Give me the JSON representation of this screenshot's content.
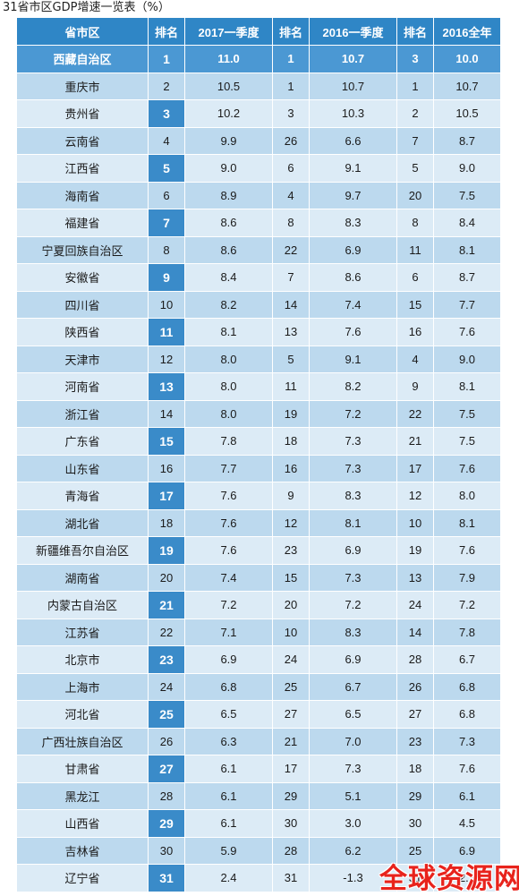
{
  "title": "31省市区GDP增速一览表（%）",
  "headers": [
    "省市区",
    "排名",
    "2017一季度",
    "排名",
    "2016一季度",
    "排名",
    "2016全年"
  ],
  "rows": [
    [
      "西藏自治区",
      "1",
      "11.0",
      "1",
      "10.7",
      "3",
      "10.0"
    ],
    [
      "重庆市",
      "2",
      "10.5",
      "1",
      "10.7",
      "1",
      "10.7"
    ],
    [
      "贵州省",
      "3",
      "10.2",
      "3",
      "10.3",
      "2",
      "10.5"
    ],
    [
      "云南省",
      "4",
      "9.9",
      "26",
      "6.6",
      "7",
      "8.7"
    ],
    [
      "江西省",
      "5",
      "9.0",
      "6",
      "9.1",
      "5",
      "9.0"
    ],
    [
      "海南省",
      "6",
      "8.9",
      "4",
      "9.7",
      "20",
      "7.5"
    ],
    [
      "福建省",
      "7",
      "8.6",
      "8",
      "8.3",
      "8",
      "8.4"
    ],
    [
      "宁夏回族自治区",
      "8",
      "8.6",
      "22",
      "6.9",
      "11",
      "8.1"
    ],
    [
      "安徽省",
      "9",
      "8.4",
      "7",
      "8.6",
      "6",
      "8.7"
    ],
    [
      "四川省",
      "10",
      "8.2",
      "14",
      "7.4",
      "15",
      "7.7"
    ],
    [
      "陕西省",
      "11",
      "8.1",
      "13",
      "7.6",
      "16",
      "7.6"
    ],
    [
      "天津市",
      "12",
      "8.0",
      "5",
      "9.1",
      "4",
      "9.0"
    ],
    [
      "河南省",
      "13",
      "8.0",
      "11",
      "8.2",
      "9",
      "8.1"
    ],
    [
      "浙江省",
      "14",
      "8.0",
      "19",
      "7.2",
      "22",
      "7.5"
    ],
    [
      "广东省",
      "15",
      "7.8",
      "18",
      "7.3",
      "21",
      "7.5"
    ],
    [
      "山东省",
      "16",
      "7.7",
      "16",
      "7.3",
      "17",
      "7.6"
    ],
    [
      "青海省",
      "17",
      "7.6",
      "9",
      "8.3",
      "12",
      "8.0"
    ],
    [
      "湖北省",
      "18",
      "7.6",
      "12",
      "8.1",
      "10",
      "8.1"
    ],
    [
      "新疆维吾尔自治区",
      "19",
      "7.6",
      "23",
      "6.9",
      "19",
      "7.6"
    ],
    [
      "湖南省",
      "20",
      "7.4",
      "15",
      "7.3",
      "13",
      "7.9"
    ],
    [
      "内蒙古自治区",
      "21",
      "7.2",
      "20",
      "7.2",
      "24",
      "7.2"
    ],
    [
      "江苏省",
      "22",
      "7.1",
      "10",
      "8.3",
      "14",
      "7.8"
    ],
    [
      "北京市",
      "23",
      "6.9",
      "24",
      "6.9",
      "28",
      "6.7"
    ],
    [
      "上海市",
      "24",
      "6.8",
      "25",
      "6.7",
      "26",
      "6.8"
    ],
    [
      "河北省",
      "25",
      "6.5",
      "27",
      "6.5",
      "27",
      "6.8"
    ],
    [
      "广西壮族自治区",
      "26",
      "6.3",
      "21",
      "7.0",
      "23",
      "7.3"
    ],
    [
      "甘肃省",
      "27",
      "6.1",
      "17",
      "7.3",
      "18",
      "7.6"
    ],
    [
      "黑龙江",
      "28",
      "6.1",
      "29",
      "5.1",
      "29",
      "6.1"
    ],
    [
      "山西省",
      "29",
      "6.1",
      "30",
      "3.0",
      "30",
      "4.5"
    ],
    [
      "吉林省",
      "30",
      "5.9",
      "28",
      "6.2",
      "25",
      "6.9"
    ],
    [
      "辽宁省",
      "31",
      "2.4",
      "31",
      "-1.3",
      "31",
      "2.5"
    ]
  ],
  "watermark": "全球资源网",
  "colors": {
    "header": "#2f86c6",
    "row_dark": "#bcd9ee",
    "row_light": "#dcebf6",
    "highlight": "#3a8bc9",
    "watermark": "#e8231c"
  }
}
